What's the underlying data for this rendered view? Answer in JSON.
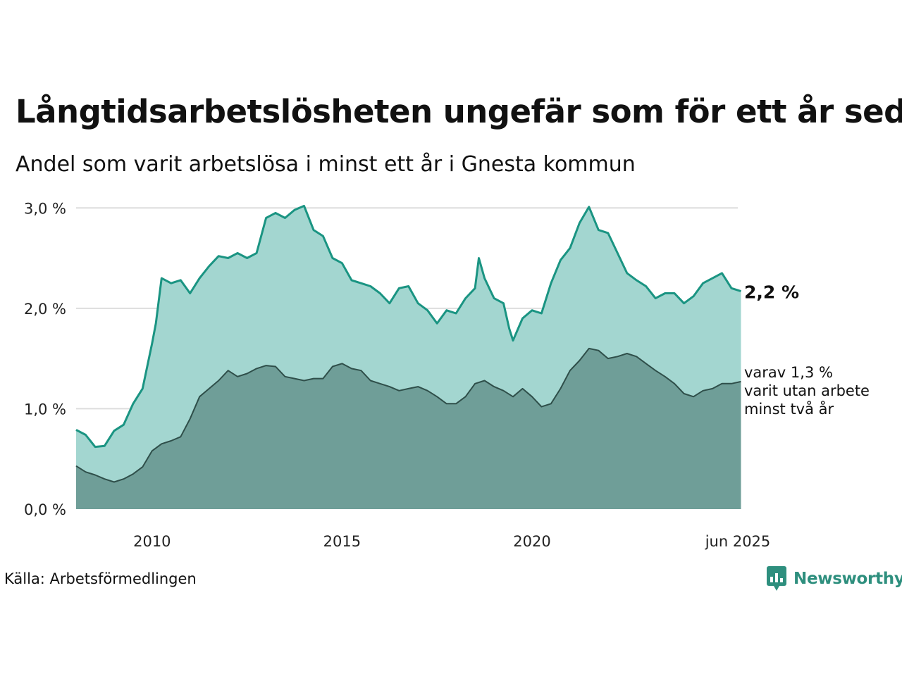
{
  "title": "Långtidsarbetslösheten ungefär som för ett år sedan",
  "subtitle": "Andel som varit arbetslösa i minst ett år i Gnesta kommun",
  "source": "Källa: Arbetsförmedlingen",
  "brand": {
    "name": "Newsworthy",
    "color": "#2e8f7e"
  },
  "chart_data": {
    "type": "area",
    "x_start": "2008-01",
    "x_end": "2025-06",
    "x_ticks": [
      {
        "date": "2010-01",
        "label": "2010"
      },
      {
        "date": "2015-01",
        "label": "2015"
      },
      {
        "date": "2020-01",
        "label": "2020"
      },
      {
        "date": "2025-06",
        "label": "jun 2025"
      }
    ],
    "y_ticks": [
      {
        "value": 0,
        "label": "0,0 %"
      },
      {
        "value": 1,
        "label": "1,0 %"
      },
      {
        "value": 2,
        "label": "2,0 %"
      },
      {
        "value": 3,
        "label": "3,0 %"
      }
    ],
    "ylim": [
      0,
      3.1
    ],
    "grid": true,
    "series": [
      {
        "key": "ett_ar",
        "color": "#1a9482",
        "fill": "#a3d6d0",
        "end_label": "2,2 %",
        "values": [
          [
            2008.0,
            0.79
          ],
          [
            2008.25,
            0.74
          ],
          [
            2008.5,
            0.62
          ],
          [
            2008.75,
            0.63
          ],
          [
            2009.0,
            0.78
          ],
          [
            2009.25,
            0.84
          ],
          [
            2009.5,
            1.05
          ],
          [
            2009.75,
            1.2
          ],
          [
            2010.0,
            1.65
          ],
          [
            2010.1,
            1.85
          ],
          [
            2010.25,
            2.3
          ],
          [
            2010.5,
            2.25
          ],
          [
            2010.75,
            2.28
          ],
          [
            2011.0,
            2.15
          ],
          [
            2011.25,
            2.3
          ],
          [
            2011.5,
            2.42
          ],
          [
            2011.75,
            2.52
          ],
          [
            2012.0,
            2.5
          ],
          [
            2012.25,
            2.55
          ],
          [
            2012.5,
            2.5
          ],
          [
            2012.75,
            2.55
          ],
          [
            2013.0,
            2.9
          ],
          [
            2013.25,
            2.95
          ],
          [
            2013.5,
            2.9
          ],
          [
            2013.75,
            2.98
          ],
          [
            2014.0,
            3.02
          ],
          [
            2014.25,
            2.78
          ],
          [
            2014.5,
            2.72
          ],
          [
            2014.75,
            2.5
          ],
          [
            2015.0,
            2.45
          ],
          [
            2015.25,
            2.28
          ],
          [
            2015.5,
            2.25
          ],
          [
            2015.75,
            2.22
          ],
          [
            2016.0,
            2.15
          ],
          [
            2016.25,
            2.05
          ],
          [
            2016.5,
            2.2
          ],
          [
            2016.75,
            2.22
          ],
          [
            2017.0,
            2.05
          ],
          [
            2017.25,
            1.98
          ],
          [
            2017.5,
            1.85
          ],
          [
            2017.75,
            1.98
          ],
          [
            2018.0,
            1.95
          ],
          [
            2018.25,
            2.1
          ],
          [
            2018.5,
            2.2
          ],
          [
            2018.6,
            2.5
          ],
          [
            2018.75,
            2.3
          ],
          [
            2019.0,
            2.1
          ],
          [
            2019.25,
            2.05
          ],
          [
            2019.4,
            1.8
          ],
          [
            2019.5,
            1.68
          ],
          [
            2019.75,
            1.9
          ],
          [
            2020.0,
            1.98
          ],
          [
            2020.25,
            1.95
          ],
          [
            2020.5,
            2.25
          ],
          [
            2020.75,
            2.48
          ],
          [
            2021.0,
            2.6
          ],
          [
            2021.25,
            2.85
          ],
          [
            2021.5,
            3.01
          ],
          [
            2021.75,
            2.78
          ],
          [
            2022.0,
            2.75
          ],
          [
            2022.25,
            2.55
          ],
          [
            2022.5,
            2.35
          ],
          [
            2022.75,
            2.28
          ],
          [
            2023.0,
            2.22
          ],
          [
            2023.25,
            2.1
          ],
          [
            2023.5,
            2.15
          ],
          [
            2023.75,
            2.15
          ],
          [
            2024.0,
            2.05
          ],
          [
            2024.25,
            2.12
          ],
          [
            2024.5,
            2.25
          ],
          [
            2024.75,
            2.3
          ],
          [
            2025.0,
            2.35
          ],
          [
            2025.25,
            2.2
          ],
          [
            2025.5,
            2.17
          ]
        ]
      },
      {
        "key": "tva_ar",
        "color": "#2f4f4a",
        "fill": "#6f9e98",
        "end_label_lines": [
          "varav 1,3 %",
          "varit utan arbete",
          "minst två år"
        ],
        "values": [
          [
            2008.0,
            0.43
          ],
          [
            2008.25,
            0.37
          ],
          [
            2008.5,
            0.34
          ],
          [
            2008.75,
            0.3
          ],
          [
            2009.0,
            0.27
          ],
          [
            2009.25,
            0.3
          ],
          [
            2009.5,
            0.35
          ],
          [
            2009.75,
            0.42
          ],
          [
            2010.0,
            0.58
          ],
          [
            2010.25,
            0.65
          ],
          [
            2010.5,
            0.68
          ],
          [
            2010.75,
            0.72
          ],
          [
            2011.0,
            0.9
          ],
          [
            2011.25,
            1.12
          ],
          [
            2011.5,
            1.2
          ],
          [
            2011.75,
            1.28
          ],
          [
            2012.0,
            1.38
          ],
          [
            2012.25,
            1.32
          ],
          [
            2012.5,
            1.35
          ],
          [
            2012.75,
            1.4
          ],
          [
            2013.0,
            1.43
          ],
          [
            2013.25,
            1.42
          ],
          [
            2013.5,
            1.32
          ],
          [
            2013.75,
            1.3
          ],
          [
            2014.0,
            1.28
          ],
          [
            2014.25,
            1.3
          ],
          [
            2014.5,
            1.3
          ],
          [
            2014.75,
            1.42
          ],
          [
            2015.0,
            1.45
          ],
          [
            2015.25,
            1.4
          ],
          [
            2015.5,
            1.38
          ],
          [
            2015.75,
            1.28
          ],
          [
            2016.0,
            1.25
          ],
          [
            2016.25,
            1.22
          ],
          [
            2016.5,
            1.18
          ],
          [
            2016.75,
            1.2
          ],
          [
            2017.0,
            1.22
          ],
          [
            2017.25,
            1.18
          ],
          [
            2017.5,
            1.12
          ],
          [
            2017.75,
            1.05
          ],
          [
            2018.0,
            1.05
          ],
          [
            2018.25,
            1.12
          ],
          [
            2018.5,
            1.25
          ],
          [
            2018.75,
            1.28
          ],
          [
            2019.0,
            1.22
          ],
          [
            2019.25,
            1.18
          ],
          [
            2019.5,
            1.12
          ],
          [
            2019.75,
            1.2
          ],
          [
            2020.0,
            1.12
          ],
          [
            2020.25,
            1.02
          ],
          [
            2020.5,
            1.05
          ],
          [
            2020.75,
            1.2
          ],
          [
            2021.0,
            1.38
          ],
          [
            2021.25,
            1.48
          ],
          [
            2021.5,
            1.6
          ],
          [
            2021.75,
            1.58
          ],
          [
            2022.0,
            1.5
          ],
          [
            2022.25,
            1.52
          ],
          [
            2022.5,
            1.55
          ],
          [
            2022.75,
            1.52
          ],
          [
            2023.0,
            1.45
          ],
          [
            2023.25,
            1.38
          ],
          [
            2023.5,
            1.32
          ],
          [
            2023.75,
            1.25
          ],
          [
            2024.0,
            1.15
          ],
          [
            2024.25,
            1.12
          ],
          [
            2024.5,
            1.18
          ],
          [
            2024.75,
            1.2
          ],
          [
            2025.0,
            1.25
          ],
          [
            2025.25,
            1.25
          ],
          [
            2025.5,
            1.27
          ]
        ]
      }
    ]
  }
}
